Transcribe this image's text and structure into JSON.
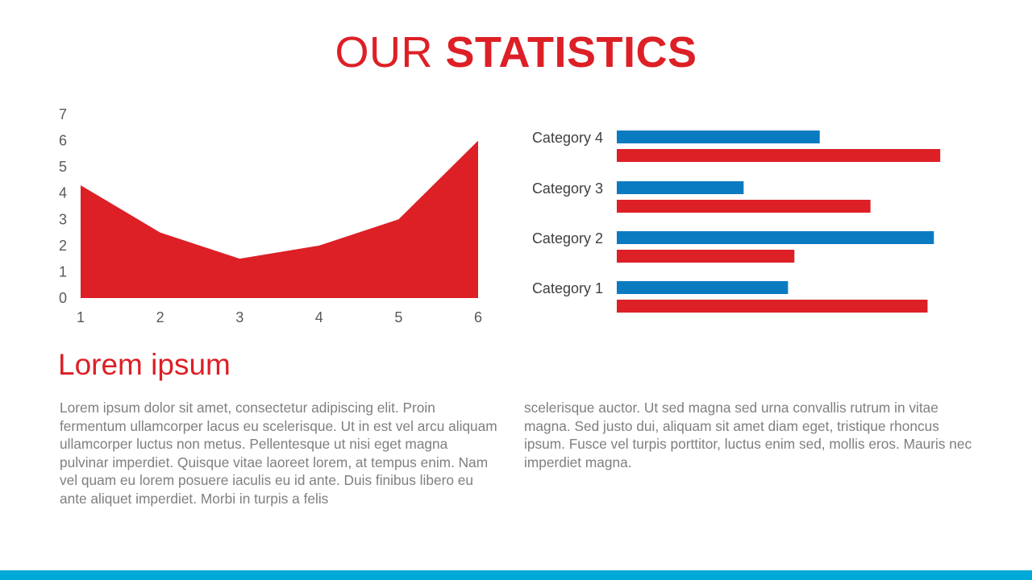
{
  "header": {
    "title_light": "OUR ",
    "title_bold": "STATISTICS"
  },
  "colors": {
    "accent_red": "#dd1f26",
    "accent_blue": "#0b7bc1",
    "bar_cyan": "#00aad8"
  },
  "chart_data": [
    {
      "type": "area",
      "x": [
        1,
        2,
        3,
        4,
        5,
        6
      ],
      "values": [
        4.3,
        2.5,
        1.5,
        2.0,
        3.0,
        6.0
      ],
      "xlabel": "",
      "ylabel": "",
      "ylim": [
        0,
        7
      ],
      "yticks": [
        "0",
        "1",
        "2",
        "3",
        "4",
        "5",
        "6",
        "7"
      ],
      "xticks": [
        "1",
        "2",
        "3",
        "4",
        "5",
        "6"
      ],
      "grid": false,
      "color": "#dd1f26"
    },
    {
      "type": "bar",
      "orientation": "horizontal",
      "categories": [
        "Category 1",
        "Category 2",
        "Category 3",
        "Category 4"
      ],
      "series": [
        {
          "color": "#0b7bc1",
          "values": [
            2.7,
            5.0,
            2.0,
            3.2
          ]
        },
        {
          "color": "#dd1f26",
          "values": [
            4.9,
            2.8,
            4.0,
            5.1
          ]
        }
      ],
      "xlim": [
        0,
        6
      ],
      "grid": false,
      "legend": "none"
    }
  ],
  "section": {
    "heading": "Lorem ipsum",
    "paragraph_col1": "Lorem ipsum dolor sit amet, consectetur adipiscing elit. Proin fermentum ullamcorper lacus eu scelerisque. Ut in est vel arcu aliquam ullamcorper luctus non metus. Pellentesque ut nisi eget magna pulvinar imperdiet. Quisque vitae laoreet lorem, at tempus enim. Nam vel quam eu lorem posuere iaculis eu id ante. Duis finibus libero eu ante aliquet imperdiet. Morbi in turpis a felis",
    "paragraph_col2": "scelerisque auctor. Ut sed magna sed urna convallis rutrum in vitae magna. Sed justo dui, aliquam sit amet diam eget, tristique rhoncus ipsum. Fusce vel turpis porttitor, luctus enim sed, mollis eros. Mauris nec imperdiet magna."
  }
}
